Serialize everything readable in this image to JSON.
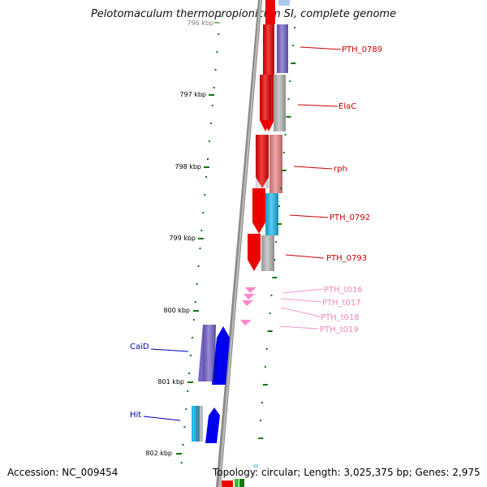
{
  "title": "Pelotomaculum thermopropionicum SI, complete genome",
  "footer": {
    "accession": "Accession: NC_009454",
    "topology": "Topology: circular; Length: 3,025,375 bp; Genes: 2,975"
  },
  "ruler": {
    "labels": [
      "796 kbp",
      "797 kbp",
      "798 kbp",
      "799 kbp",
      "800 kbp",
      "801 kbp",
      "802 kbp"
    ]
  },
  "genes": [
    {
      "label": "PTH_0789",
      "color": "#cc0000"
    },
    {
      "label": "ElaC",
      "color": "#cc0000"
    },
    {
      "label": "rph",
      "color": "#cc0000"
    },
    {
      "label": "PTH_0792",
      "color": "#cc0000"
    },
    {
      "label": "PTH_0793",
      "color": "#cc0000"
    },
    {
      "label": "PTH_t016",
      "color": "#ee88bb"
    },
    {
      "label": "PTH_t017",
      "color": "#ee88bb"
    },
    {
      "label": "PTH_t018",
      "color": "#ee88bb"
    },
    {
      "label": "PTH_t019",
      "color": "#ee88bb"
    },
    {
      "label": "CaiD",
      "color": "#0000bb"
    },
    {
      "label": "Hit",
      "color": "#0000bb"
    }
  ],
  "colors": {
    "backbone": "#8a8a8a",
    "forward_cds": "#ee0000",
    "trna": "#ff88cc",
    "reverse_cds": "#0000ee",
    "cog_purple": "#7766cc",
    "cog_gray": "#bbbbbb",
    "cog_salmon": "#ee8888",
    "cog_cyan": "#22bbee",
    "tick_green": "#117711"
  }
}
